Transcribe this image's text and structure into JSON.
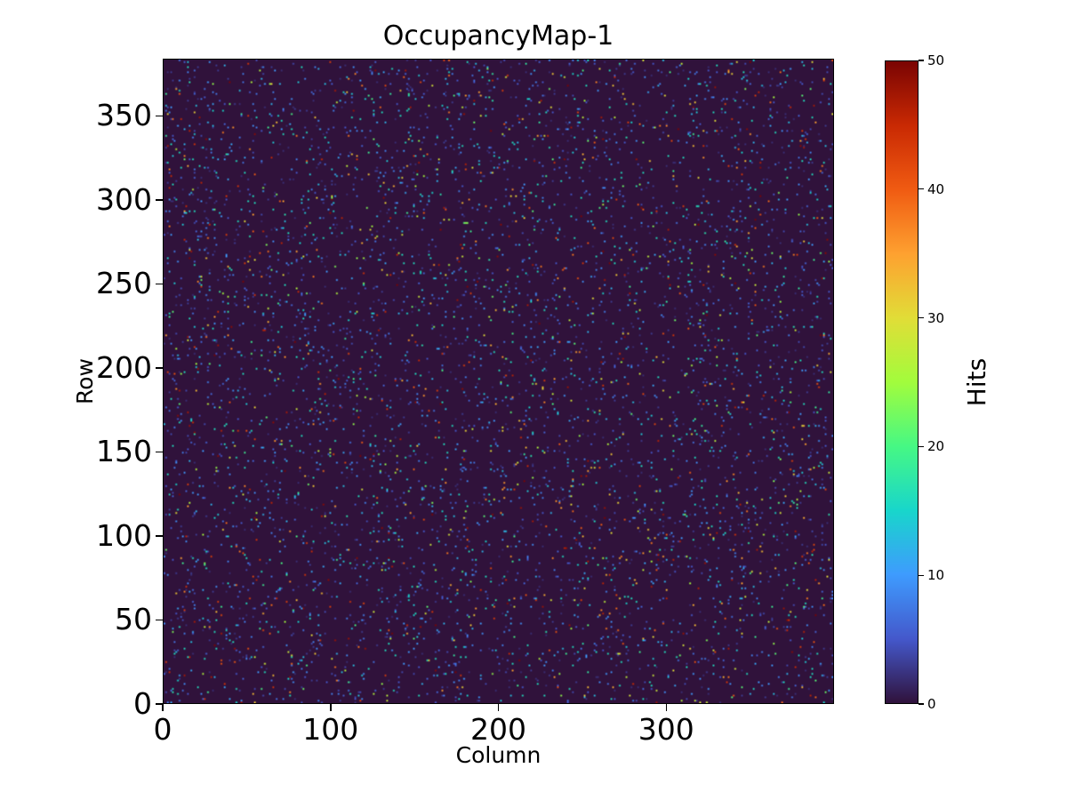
{
  "figure": {
    "background_color": "#ffffff",
    "text_color": "#000000"
  },
  "chart_data": {
    "type": "heatmap",
    "title": "OccupancyMap-1",
    "xlabel": "Column",
    "ylabel": "Row",
    "colorbar_label": "Hits",
    "xlim": [
      0,
      400
    ],
    "ylim": [
      0,
      384
    ],
    "value_range": [
      0,
      50
    ],
    "x_ticks": [
      0,
      100,
      200,
      300
    ],
    "y_ticks": [
      0,
      50,
      100,
      150,
      200,
      250,
      300,
      350
    ],
    "colorbar_ticks": [
      0,
      10,
      20,
      30,
      40,
      50
    ],
    "grid_cols": 400,
    "grid_rows": 384,
    "legend_position": "right-colorbar",
    "grid_lines": false,
    "colormap": "turbo",
    "colormap_stops": [
      [
        0.0,
        "#30123b"
      ],
      [
        0.1,
        "#4458cb"
      ],
      [
        0.2,
        "#3e9bfe"
      ],
      [
        0.3,
        "#18d6cb"
      ],
      [
        0.4,
        "#46f884"
      ],
      [
        0.5,
        "#a2fc3c"
      ],
      [
        0.6,
        "#e1dd37"
      ],
      [
        0.7,
        "#fea130"
      ],
      [
        0.8,
        "#f05b12"
      ],
      [
        0.9,
        "#c92903"
      ],
      [
        1.0,
        "#7a0403"
      ]
    ],
    "background_value_color": "#30123b",
    "occupancy": {
      "n_points": 6000,
      "seed": 1234567,
      "distribution": "sparse-random-uniform-positions",
      "low_fraction": 0.7,
      "low_mean_hits": 6,
      "min_hit": 2,
      "max_hit": 50
    }
  }
}
